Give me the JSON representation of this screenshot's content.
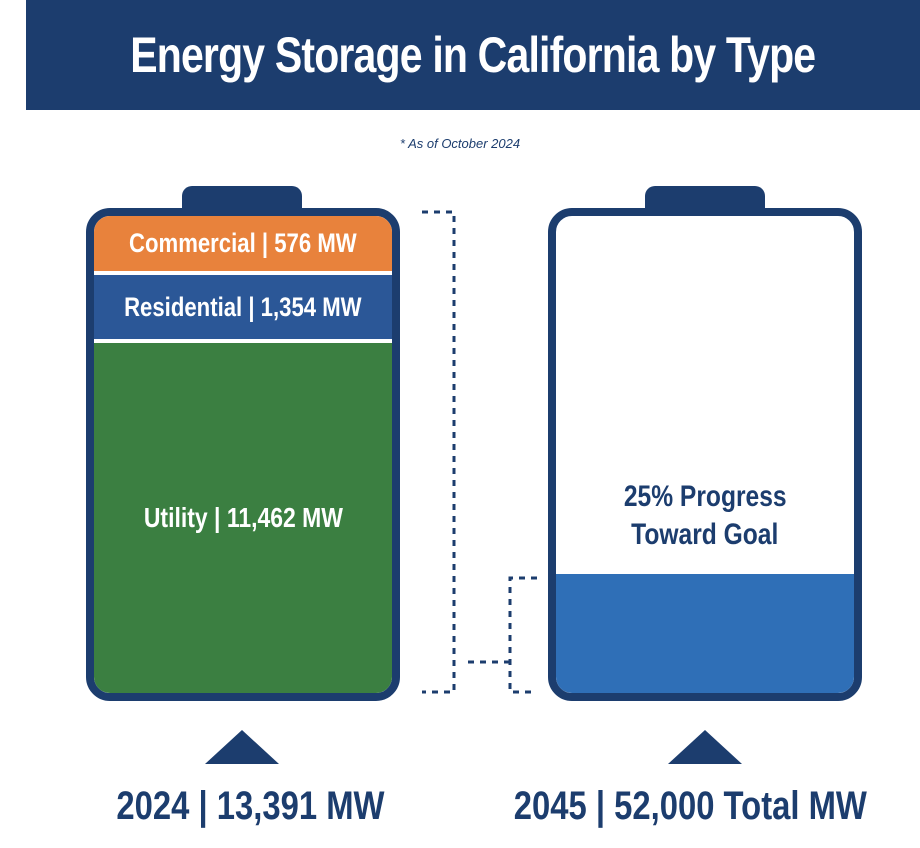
{
  "title": "Energy Storage in California by Type",
  "note": "* As of October 2024",
  "colors": {
    "navy": "#1c3d6e",
    "commercial": "#e8823c",
    "residential": "#2b5797",
    "utility": "#3b7f41",
    "progress": "#2f6fb7"
  },
  "left_battery": {
    "segments": [
      {
        "label": "Commercial | 576 MW"
      },
      {
        "label": "Residential | 1,354 MW"
      },
      {
        "label": "Utility | 11,462 MW"
      }
    ],
    "footer": "2024 | 13,391 MW"
  },
  "right_battery": {
    "progress_text_line1": "25% Progress",
    "progress_text_line2": "Toward Goal",
    "footer": "2045 | 52,000 Total  MW"
  },
  "chart_data": {
    "type": "bar",
    "categories": [
      "Commercial",
      "Residential",
      "Utility"
    ],
    "values": [
      576,
      1354,
      11462
    ],
    "unit": "MW",
    "total_2024": 13391,
    "goal_2045": 52000,
    "progress_fraction": 0.25
  }
}
